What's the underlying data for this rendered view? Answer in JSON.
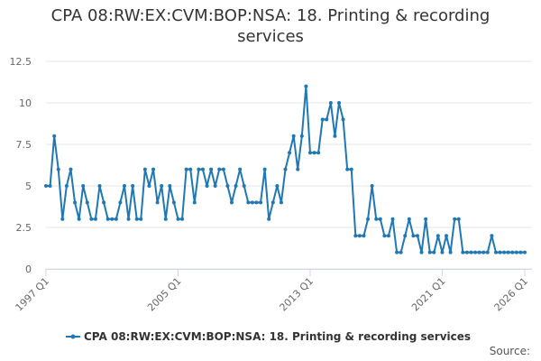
{
  "chart_data": {
    "type": "line",
    "title": "CPA 08:RW:EX:CVM:BOP:NSA: 18. Printing & recording services",
    "source": "Source:",
    "categories": [
      "1997 Q1",
      null,
      null,
      null,
      null,
      null,
      null,
      null,
      null,
      null,
      null,
      null,
      null,
      null,
      null,
      null,
      null,
      null,
      null,
      null,
      null,
      null,
      null,
      null,
      null,
      null,
      null,
      null,
      null,
      null,
      null,
      null,
      "2005 Q1",
      null,
      null,
      null,
      null,
      null,
      null,
      null,
      null,
      null,
      null,
      null,
      null,
      null,
      null,
      null,
      null,
      null,
      null,
      null,
      null,
      null,
      null,
      null,
      null,
      null,
      null,
      null,
      null,
      null,
      null,
      null,
      "2013 Q1",
      null,
      null,
      null,
      null,
      null,
      null,
      null,
      null,
      null,
      null,
      null,
      null,
      null,
      null,
      null,
      null,
      null,
      null,
      null,
      null,
      null,
      null,
      null,
      null,
      null,
      null,
      null,
      null,
      null,
      null,
      null,
      "2021 Q1",
      null,
      null,
      null,
      null,
      null,
      null,
      null,
      null,
      null,
      null,
      null,
      null,
      null,
      null,
      null,
      null,
      null,
      null,
      null,
      "2026 Q1"
    ],
    "series": [
      {
        "name": "CPA 08:RW:EX:CVM:BOP:NSA: 18. Printing & recording services",
        "color": "#1f78b4",
        "values": [
          5,
          5,
          8,
          6,
          3,
          5,
          6,
          4,
          3,
          5,
          4,
          3,
          3,
          5,
          4,
          3,
          3,
          3,
          4,
          5,
          3,
          5,
          3,
          3,
          6,
          5,
          6,
          4,
          5,
          3,
          5,
          4,
          3,
          3,
          6,
          6,
          4,
          6,
          6,
          5,
          6,
          5,
          6,
          6,
          5,
          4,
          5,
          6,
          5,
          4,
          4,
          4,
          4,
          6,
          3,
          4,
          5,
          4,
          6,
          7,
          8,
          6,
          8,
          11,
          7,
          7,
          7,
          9,
          9,
          10,
          8,
          10,
          9,
          6,
          6,
          2,
          2,
          2,
          3,
          5,
          3,
          3,
          2,
          2,
          3,
          1,
          1,
          2,
          3,
          2,
          2,
          1,
          3,
          1,
          1,
          2,
          1,
          2,
          1,
          3,
          3,
          1,
          1,
          1,
          1,
          1,
          1,
          1,
          2,
          1,
          1,
          1,
          1,
          1,
          1,
          1,
          1
        ]
      }
    ],
    "ylim": [
      0,
      12.5
    ],
    "yticks": [
      0,
      2.5,
      5,
      7.5,
      10,
      12.5
    ],
    "grid": true,
    "legend": "bottom"
  }
}
